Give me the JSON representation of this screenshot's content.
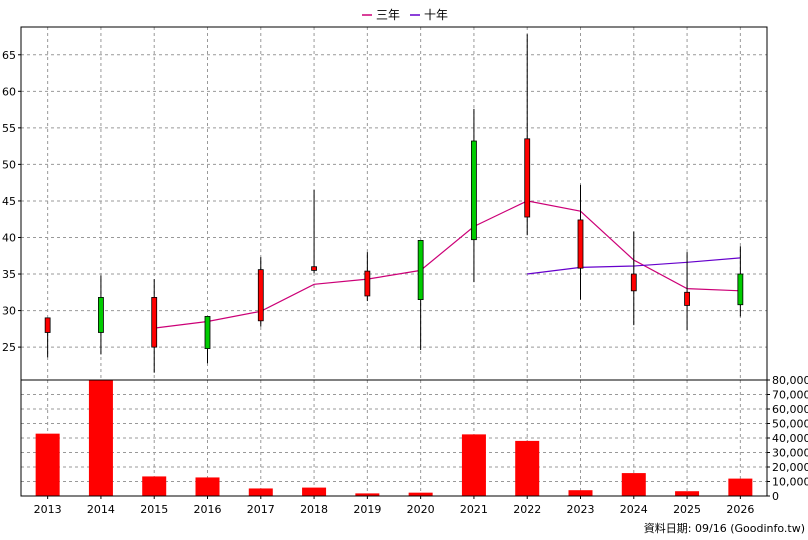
{
  "chart_data": {
    "type": "candlestick+line+bar",
    "years": [
      "2013",
      "2014",
      "2015",
      "2016",
      "2017",
      "2018",
      "2019",
      "2020",
      "2021",
      "2022",
      "2023",
      "2024",
      "2025",
      "2026"
    ],
    "price": {
      "yticks": [
        25,
        30,
        35,
        40,
        45,
        50,
        55,
        60,
        65
      ],
      "ylim": [
        20.5,
        68.8
      ],
      "candles": [
        {
          "open": 27.0,
          "close": 29.0,
          "high": 29.0,
          "low": 23.6
        },
        {
          "open": 31.8,
          "close": 27.0,
          "high": 34.8,
          "low": 24.0
        },
        {
          "open": 25.0,
          "close": 31.8,
          "high": 34.3,
          "low": 21.5
        },
        {
          "open": 29.2,
          "close": 24.8,
          "high": 29.2,
          "low": 22.8
        },
        {
          "open": 28.6,
          "close": 35.6,
          "high": 37.3,
          "low": 27.8
        },
        {
          "open": 35.5,
          "close": 36.0,
          "high": 46.5,
          "low": 35.1
        },
        {
          "open": 32.0,
          "close": 35.4,
          "high": 38.0,
          "low": 31.3
        },
        {
          "open": 39.6,
          "close": 31.5,
          "high": 39.6,
          "low": 24.6
        },
        {
          "open": 53.2,
          "close": 39.7,
          "high": 57.6,
          "low": 33.9
        },
        {
          "open": 42.8,
          "close": 53.5,
          "high": 67.8,
          "low": 40.3
        },
        {
          "open": 35.8,
          "close": 42.4,
          "high": 47.2,
          "low": 31.5
        },
        {
          "open": 32.7,
          "close": 35.0,
          "high": 40.8,
          "low": 28.0
        },
        {
          "open": 30.7,
          "close": 32.5,
          "high": 38.0,
          "low": 27.3
        },
        {
          "open": 35.0,
          "close": 30.8,
          "high": 38.8,
          "low": 29.2
        }
      ],
      "series": [
        {
          "name": "三年",
          "color": "#cc0077",
          "values": [
            null,
            null,
            27.6,
            28.5,
            29.9,
            33.6,
            34.3,
            35.5,
            41.5,
            45.0,
            43.6,
            36.9,
            33.0,
            32.7
          ]
        },
        {
          "name": "十年",
          "color": "#6600cc",
          "values": [
            null,
            null,
            null,
            null,
            null,
            null,
            null,
            null,
            null,
            35.0,
            35.9,
            36.1,
            36.6,
            37.2
          ]
        }
      ]
    },
    "volume": {
      "yticks": [
        0,
        10000,
        20000,
        30000,
        40000,
        50000,
        60000,
        70000,
        80000
      ],
      "tick_labels": [
        "0",
        "10,000",
        "20,000",
        "30,000",
        "40,000",
        "50,000",
        "60,000",
        "70,000",
        "80,000"
      ],
      "ylim": [
        0,
        80000
      ],
      "values": [
        43000,
        81000,
        13500,
        12800,
        5200,
        5800,
        1800,
        2300,
        42500,
        38000,
        4000,
        15800,
        3300,
        12000
      ],
      "color": "#ff0000"
    },
    "colors": {
      "up": "#ff0000",
      "down": "#00cc00",
      "grid": "#999999"
    }
  },
  "footer": "資料日期: 09/16 (Goodinfo.tw)"
}
